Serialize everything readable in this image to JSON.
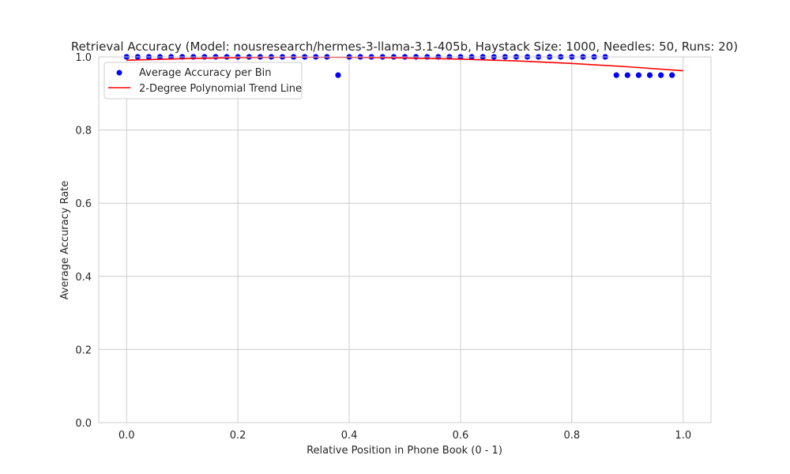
{
  "chart_data": {
    "type": "scatter",
    "title": "Retrieval Accuracy (Model: nousresearch/hermes-3-llama-3.1-405b, Haystack Size: 1000, Needles: 50, Runs: 20)",
    "xlabel": "Relative Position in Phone Book (0 - 1)",
    "ylabel": "Average Accuracy Rate",
    "xlim": [
      -0.05,
      1.05
    ],
    "ylim": [
      0.0,
      1.0
    ],
    "xticks": [
      "0.0",
      "0.2",
      "0.4",
      "0.6",
      "0.8",
      "1.0"
    ],
    "yticks": [
      "0.0",
      "0.2",
      "0.4",
      "0.6",
      "0.8",
      "1.0"
    ],
    "grid": true,
    "legend_position": "top-left",
    "series": [
      {
        "name": "Average Accuracy per Bin",
        "kind": "scatter",
        "color": "#0000ff",
        "x": [
          0.0,
          0.02,
          0.04,
          0.06,
          0.08,
          0.1,
          0.12,
          0.14,
          0.16,
          0.18,
          0.2,
          0.22,
          0.24,
          0.26,
          0.28,
          0.3,
          0.32,
          0.34,
          0.36,
          0.38,
          0.4,
          0.42,
          0.44,
          0.46,
          0.48,
          0.5,
          0.52,
          0.54,
          0.56,
          0.58,
          0.6,
          0.62,
          0.64,
          0.66,
          0.68,
          0.7,
          0.72,
          0.74,
          0.76,
          0.78,
          0.8,
          0.82,
          0.84,
          0.86,
          0.88,
          0.9,
          0.92,
          0.94,
          0.96,
          0.98
        ],
        "y": [
          1.0,
          1.0,
          1.0,
          1.0,
          1.0,
          1.0,
          1.0,
          1.0,
          1.0,
          1.0,
          1.0,
          1.0,
          1.0,
          1.0,
          1.0,
          1.0,
          1.0,
          1.0,
          1.0,
          0.95,
          1.0,
          1.0,
          1.0,
          1.0,
          1.0,
          1.0,
          1.0,
          1.0,
          1.0,
          1.0,
          1.0,
          1.0,
          1.0,
          1.0,
          1.0,
          1.0,
          1.0,
          1.0,
          1.0,
          1.0,
          1.0,
          1.0,
          1.0,
          1.0,
          0.95,
          0.95,
          0.95,
          0.95,
          0.95,
          0.95
        ]
      },
      {
        "name": "2-Degree Polynomial Trend Line",
        "kind": "line",
        "color": "#ff0000",
        "x": [
          0.0,
          0.1,
          0.2,
          0.3,
          0.4,
          0.5,
          0.6,
          0.7,
          0.8,
          0.9,
          1.0
        ],
        "y": [
          0.991,
          0.995,
          0.998,
          0.9995,
          0.999,
          0.997,
          0.994,
          0.989,
          0.982,
          0.973,
          0.962
        ]
      }
    ]
  }
}
